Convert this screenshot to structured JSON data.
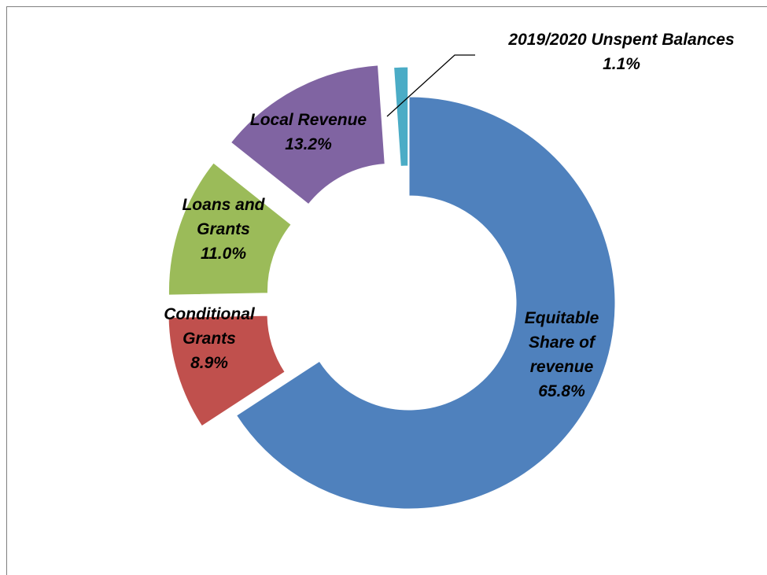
{
  "chart_data": {
    "type": "pie",
    "variant": "donut",
    "categories": [
      "Equitable Share of revenue",
      "Conditional Grants",
      "Loans and Grants",
      "Local Revenue",
      "2019/2020 Unspent Balances"
    ],
    "values": [
      65.8,
      8.9,
      11.0,
      13.2,
      1.1
    ],
    "unit": "%",
    "data_labels": [
      [
        "Equitable",
        "Share of",
        "revenue",
        "65.8%"
      ],
      [
        "Conditional",
        "Grants",
        "8.9%"
      ],
      [
        "Loans and",
        "Grants",
        "11.0%"
      ],
      [
        "Local Revenue",
        "13.2%"
      ],
      [
        "2019/2020 Unspent Balances",
        "1.1%"
      ]
    ],
    "colors": [
      "#4F81BD",
      "#C0504D",
      "#9BBB59",
      "#8064A2",
      "#4BACC6"
    ],
    "legend": "none",
    "grid": false
  }
}
